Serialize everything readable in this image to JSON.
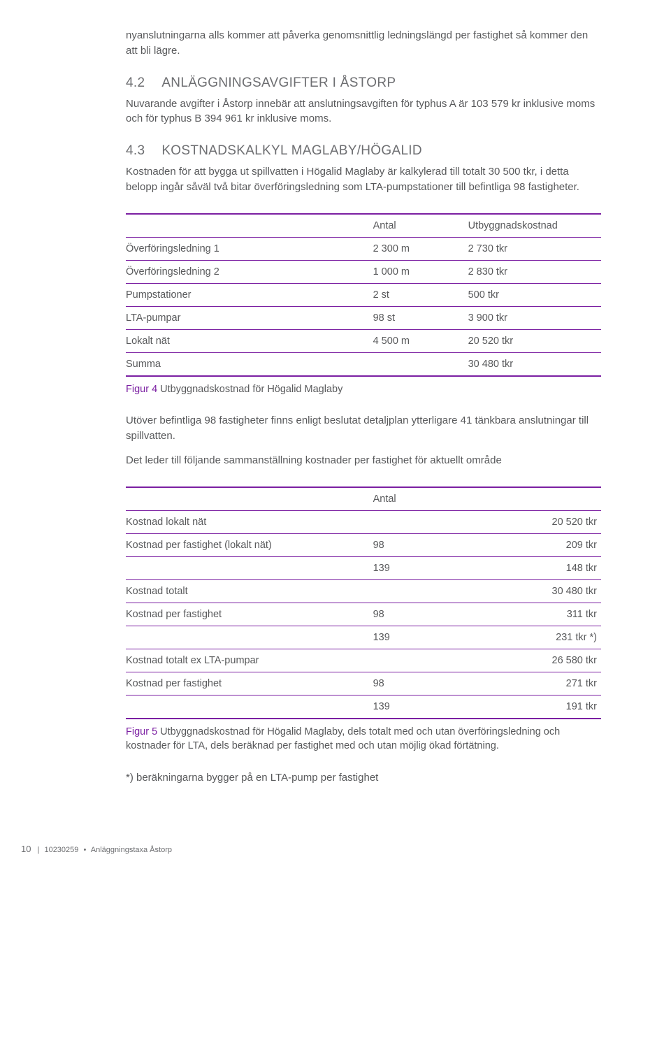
{
  "intro_para": "nyanslutningarna alls kommer att påverka genomsnittlig ledningslängd per fastighet så kommer den att bli lägre.",
  "section_4_2": {
    "num": "4.2",
    "title": "ANLÄGGNINGSAVGIFTER I ÅSTORP",
    "para": "Nuvarande avgifter i Åstorp innebär att anslutningsavgiften för typhus A är 103 579 kr inklusive moms och för typhus B 394 961 kr inklusive moms."
  },
  "section_4_3": {
    "num": "4.3",
    "title": "KOSTNADSKALKYL MAGLABY/HÖGALID",
    "para": "Kostnaden för att bygga ut spillvatten i Högalid Maglaby är kalkylerad till totalt 30 500 tkr, i detta belopp ingår såväl två bitar överföringsledning som LTA-pumpstationer till befintliga 98 fastigheter."
  },
  "table1": {
    "head_mid": "Antal",
    "head_right": "Utbyggnadskostnad",
    "rows": [
      {
        "label": "Överföringsledning 1",
        "mid": "2 300 m",
        "right": "2 730 tkr"
      },
      {
        "label": "Överföringsledning 2",
        "mid": "1 000 m",
        "right": "2 830 tkr"
      },
      {
        "label": "Pumpstationer",
        "mid": "2 st",
        "right": "500 tkr"
      },
      {
        "label": "LTA-pumpar",
        "mid": "98 st",
        "right": "3 900 tkr"
      },
      {
        "label": "Lokalt nät",
        "mid": "4 500 m",
        "right": "20 520 tkr"
      },
      {
        "label": "Summa",
        "mid": "",
        "right": "30 480 tkr"
      }
    ]
  },
  "fig4": {
    "prefix": "Figur 4",
    "text": " Utbyggnadskostnad för Högalid Maglaby"
  },
  "mid_para1": "Utöver befintliga 98 fastigheter finns enligt beslutat detaljplan ytterligare 41 tänkbara anslutningar till spillvatten.",
  "mid_para2": "Det leder till följande sammanställning kostnader per fastighet för aktuellt område",
  "table2": {
    "head_mid": "Antal",
    "rows": [
      {
        "label": "Kostnad lokalt nät",
        "mid": "",
        "right": "20 520 tkr"
      },
      {
        "label": "Kostnad per fastighet (lokalt nät)",
        "mid": "98",
        "right": "209 tkr"
      },
      {
        "label": "",
        "mid": "139",
        "right": "148 tkr"
      },
      {
        "label": "Kostnad totalt",
        "mid": "",
        "right": "30 480 tkr"
      },
      {
        "label": "Kostnad per fastighet",
        "mid": "98",
        "right": "311 tkr"
      },
      {
        "label": "",
        "mid": "139",
        "right": "231 tkr *)"
      },
      {
        "label": "Kostnad totalt ex LTA-pumpar",
        "mid": "",
        "right": "26 580 tkr"
      },
      {
        "label": "Kostnad per fastighet",
        "mid": "98",
        "right": "271 tkr"
      },
      {
        "label": "",
        "mid": "139",
        "right": "191 tkr"
      }
    ]
  },
  "fig5": {
    "prefix": "Figur 5",
    "text": " Utbyggnadskostnad för Högalid Maglaby, dels totalt med och utan överföringsledning och kostnader för LTA, dels beräknad per fastighet med och utan möjlig ökad förtätning."
  },
  "note": "*) beräkningarna bygger på en LTA-pump per fastighet",
  "footer": {
    "page": "10",
    "sep": "|",
    "doc": "10230259",
    "bullet": "•",
    "title": "Anläggningstaxa Åstorp"
  }
}
